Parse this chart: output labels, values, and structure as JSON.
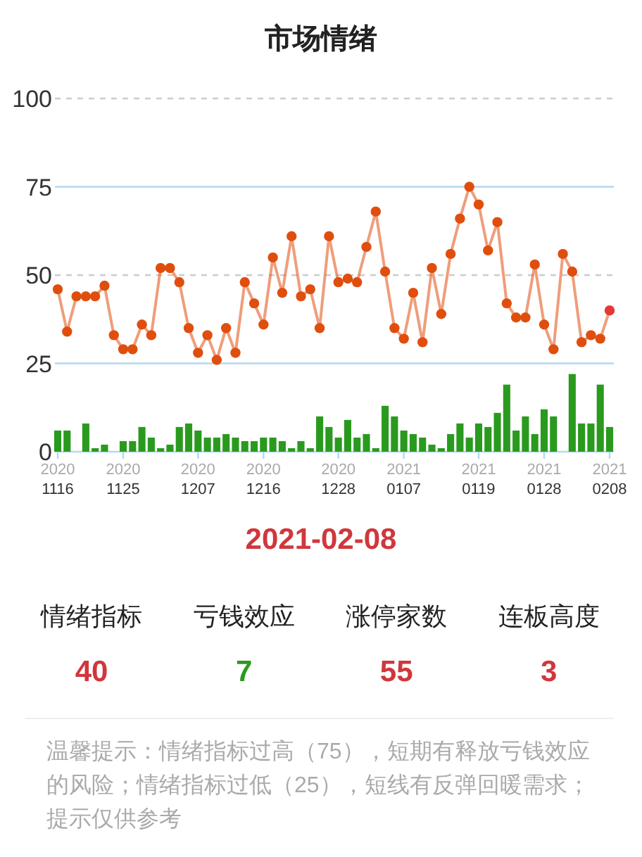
{
  "chart_data": [
    {
      "type": "line",
      "title": "市场情绪",
      "categories": [
        "2020\n1116",
        null,
        null,
        null,
        null,
        null,
        null,
        "2020\n1125",
        null,
        null,
        null,
        null,
        null,
        null,
        null,
        "2020\n1207",
        null,
        null,
        null,
        null,
        null,
        null,
        "2020\n1216",
        null,
        null,
        null,
        null,
        null,
        null,
        null,
        "2020\n1228",
        null,
        null,
        null,
        null,
        null,
        null,
        "2021\n0107",
        null,
        null,
        null,
        null,
        null,
        null,
        null,
        "2021\n0119",
        null,
        null,
        null,
        null,
        null,
        null,
        "2021\n0128",
        null,
        null,
        null,
        null,
        null,
        null,
        "2021\n0208"
      ],
      "series": [
        {
          "type": "bar",
          "color": "#2a9a1e",
          "values": [
            6,
            6,
            0,
            8,
            1,
            2,
            0,
            3,
            3,
            7,
            4,
            1,
            2,
            7,
            8,
            6,
            4,
            4,
            5,
            4,
            3,
            3,
            4,
            4,
            3,
            1,
            3,
            1,
            10,
            7,
            4,
            9,
            4,
            5,
            1,
            13,
            10,
            6,
            5,
            4,
            2,
            1,
            5,
            8,
            4,
            8,
            7,
            11,
            19,
            6,
            10,
            5,
            12,
            10,
            0,
            22,
            8,
            8,
            19,
            7
          ]
        },
        {
          "type": "line",
          "color": "#e04e0e",
          "values": [
            46,
            34,
            44,
            44,
            44,
            47,
            33,
            29,
            29,
            36,
            33,
            52,
            52,
            48,
            35,
            28,
            33,
            26,
            35,
            28,
            48,
            42,
            36,
            55,
            45,
            61,
            44,
            46,
            35,
            61,
            48,
            49,
            48,
            58,
            68,
            51,
            35,
            32,
            45,
            31,
            52,
            39,
            56,
            66,
            75,
            70,
            57,
            65,
            42,
            38,
            38,
            53,
            36,
            29,
            56,
            51,
            31,
            33,
            32,
            40
          ],
          "colors": [
            "#e04e0e",
            "#e04e0e",
            "#e04e0e",
            "#e04e0e",
            "#e04e0e",
            "#e04e0e",
            "#e04e0e",
            "#e04e0e",
            "#e04e0e",
            "#e04e0e",
            "#e04e0e",
            "#e04e0e",
            "#e04e0e",
            "#e04e0e",
            "#e04e0e",
            "#e04e0e",
            "#e04e0e",
            "#e04e0e",
            "#e04e0e",
            "#e04e0e",
            "#e04e0e",
            "#e04e0e",
            "#e04e0e",
            "#e04e0e",
            "#e04e0e",
            "#e04e0e",
            "#e04e0e",
            "#e04e0e",
            "#e04e0e",
            "#e04e0e",
            "#e04e0e",
            "#e04e0e",
            "#e04e0e",
            "#e04e0e",
            "#e04e0e",
            "#e04e0e",
            "#e04e0e",
            "#e04e0e",
            "#e04e0e",
            "#e04e0e",
            "#e04e0e",
            "#e04e0e",
            "#e04e0e",
            "#e04e0e",
            "#e04e0e",
            "#e04e0e",
            "#e04e0e",
            "#e04e0e",
            "#e04e0e",
            "#e04e0e",
            "#e04e0e",
            "#e04e0e",
            "#e04e0e",
            "#e04e0e",
            "#e04e0e",
            "#e04e0e",
            "#e04e0e",
            "#e04e0e",
            "#e04e0e",
            "#e53935"
          ]
        }
      ],
      "marker": "circle",
      "ylim": [
        0,
        100
      ],
      "yticks": [
        0,
        25,
        50,
        75,
        100
      ],
      "ref_lines": [
        {
          "axis": "y",
          "value": 100,
          "color": "#cccccc",
          "line_style": "dashed"
        },
        {
          "axis": "y",
          "value": 75,
          "color": "#b3d9f2"
        },
        {
          "axis": "y",
          "value": 50,
          "color": "#cccccc",
          "line_style": "dashed"
        },
        {
          "axis": "y",
          "value": 25,
          "color": "#b3d9f2"
        }
      ]
    },
    {
      "type": "other",
      "title": "2021-02-08",
      "categories": [
        "情绪指标",
        "亏钱效应",
        "涨停家数",
        "连板高度"
      ],
      "values": [
        40,
        7,
        55,
        3
      ],
      "colors": [
        "#d0373c",
        "#2a9a1e",
        "#d0373c",
        "#d0373c"
      ],
      "data_labels": true,
      "annotations": [
        "温馨提示：情绪指标过高（75），短期有释放亏钱效应的风险；情绪指标过低（25），短线有反弹回暖需求；提示仅供参考"
      ]
    }
  ]
}
